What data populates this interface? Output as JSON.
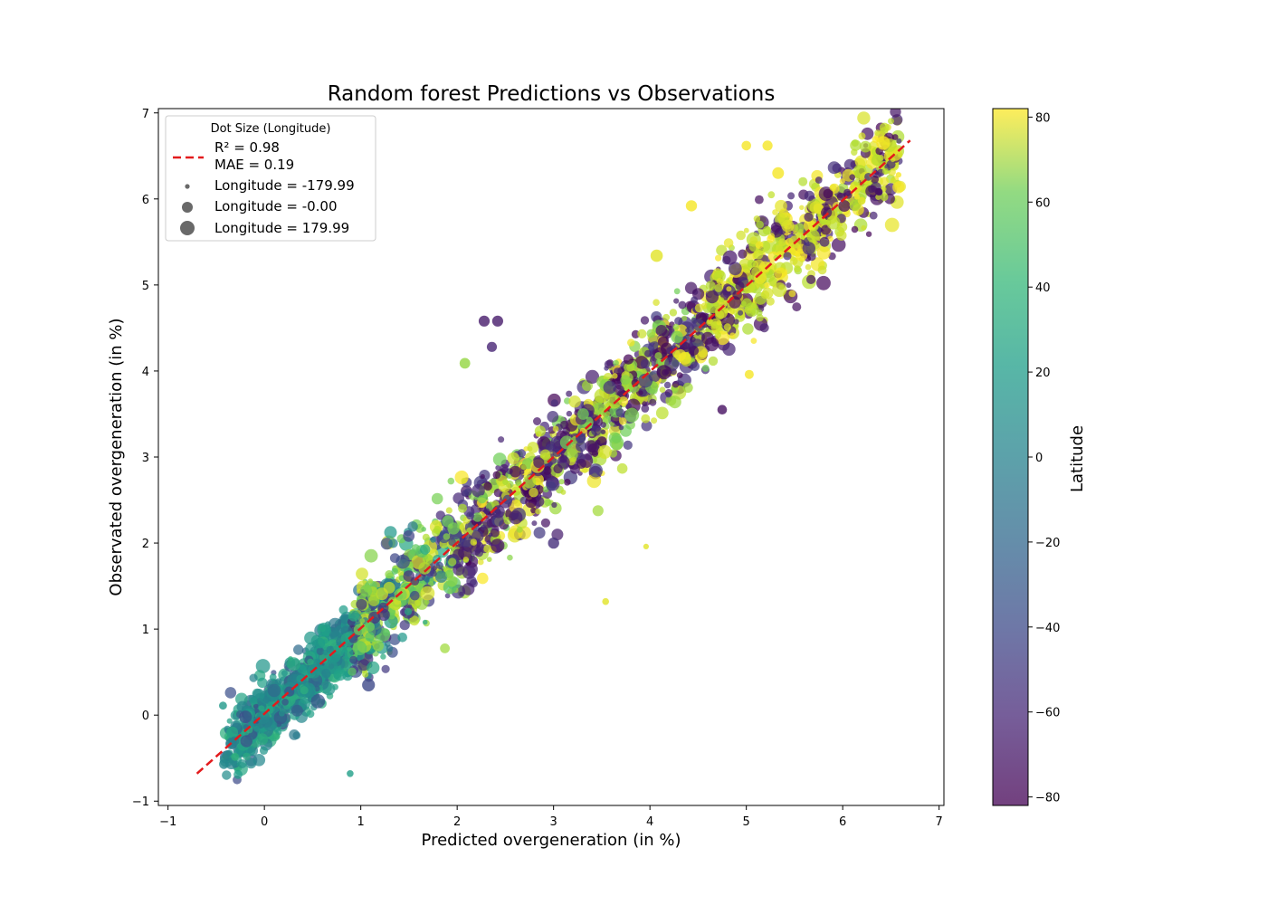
{
  "chart_data": {
    "type": "scatter",
    "title": "Random forest Predictions vs Observations",
    "xlabel": "Predicted overgeneration (in %)",
    "ylabel": "Observated overgeneration (in %)",
    "xlim": [
      -1.1,
      7.05
    ],
    "ylim": [
      -1.05,
      7.05
    ],
    "xticks": [
      -1,
      0,
      1,
      2,
      3,
      4,
      5,
      6,
      7
    ],
    "yticks": [
      -1,
      0,
      1,
      2,
      3,
      4,
      5,
      6,
      7
    ],
    "grid": false,
    "fit_line": {
      "x": [
        -0.7,
        6.7
      ],
      "y": [
        -0.68,
        6.68
      ],
      "color": "#e31a1c",
      "style": "dashed"
    },
    "legend": {
      "title": "Dot Size (Longitude)",
      "placement": "top-left",
      "line_label_1": "R² = 0.98",
      "line_label_2": "MAE = 0.19",
      "size_entries": [
        {
          "label": "Longitude = -179.99",
          "longitude": -179.99
        },
        {
          "label": "Longitude = -0.00",
          "longitude": 0.0
        },
        {
          "label": "Longitude = 179.99",
          "longitude": 179.99
        }
      ]
    },
    "colorbar": {
      "label": "Latitude",
      "range": [
        -82,
        82
      ],
      "ticks": [
        -80,
        -60,
        -40,
        -20,
        0,
        20,
        40,
        60,
        80
      ],
      "tick_labels": [
        "−80",
        "−60",
        "−40",
        "−20",
        "0",
        "20",
        "40",
        "60",
        "80"
      ],
      "colormap": "viridis"
    },
    "point_count": 2600,
    "notable_points": [
      {
        "x": 0.89,
        "y": -0.68,
        "latitude": 10,
        "longitude": -100
      },
      {
        "x": 3.54,
        "y": 1.32,
        "latitude": 75,
        "longitude": -100
      },
      {
        "x": 3.96,
        "y": 1.96,
        "latitude": 75,
        "longitude": -150
      },
      {
        "x": 2.28,
        "y": 4.58,
        "latitude": -70,
        "longitude": 50
      },
      {
        "x": 2.42,
        "y": 4.58,
        "latitude": -70,
        "longitude": 50
      },
      {
        "x": 2.36,
        "y": 4.28,
        "latitude": -65,
        "longitude": 20
      },
      {
        "x": 2.08,
        "y": 4.09,
        "latitude": 55,
        "longitude": 40
      },
      {
        "x": 4.75,
        "y": 3.55,
        "latitude": -75,
        "longitude": 0
      },
      {
        "x": 4.07,
        "y": 5.34,
        "latitude": 75,
        "longitude": 100
      },
      {
        "x": 3.0,
        "y": 2.0,
        "latitude": -60,
        "longitude": 60
      },
      {
        "x": 4.43,
        "y": 5.92,
        "latitude": 80,
        "longitude": 60
      },
      {
        "x": 5.03,
        "y": 3.96,
        "latitude": 80,
        "longitude": -20
      },
      {
        "x": 5.22,
        "y": 6.62,
        "latitude": 80,
        "longitude": 20
      },
      {
        "x": 5.0,
        "y": 6.62,
        "latitude": 80,
        "longitude": 0
      },
      {
        "x": 5.33,
        "y": 6.3,
        "latitude": 80,
        "longitude": 80
      },
      {
        "x": 6.42,
        "y": 6.65,
        "latitude": 80,
        "longitude": 150
      },
      {
        "x": 6.58,
        "y": 6.28,
        "latitude": 80,
        "longitude": -150
      },
      {
        "x": 1.08,
        "y": 0.35,
        "latitude": -45,
        "longitude": 120
      },
      {
        "x": -0.43,
        "y": 0.11,
        "latitude": 5,
        "longitude": -60
      },
      {
        "x": -0.42,
        "y": -0.57,
        "latitude": -5,
        "longitude": 0
      }
    ]
  }
}
